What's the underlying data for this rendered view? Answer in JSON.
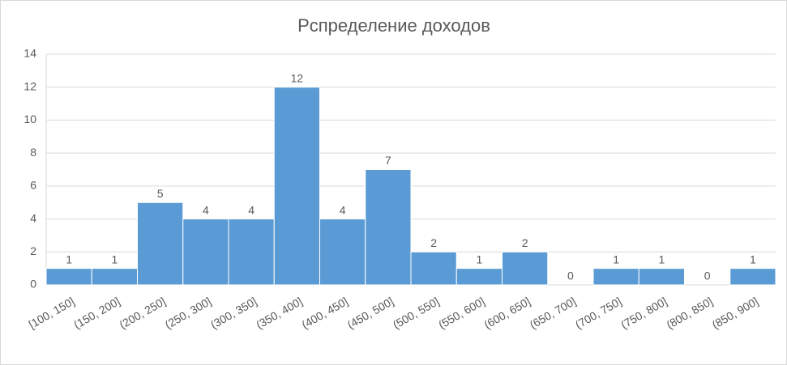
{
  "chart_data": {
    "type": "bar",
    "title": "Рспределение доходов",
    "categories": [
      "[100, 150]",
      "(150, 200]",
      "(200, 250]",
      "(250, 300]",
      "(300, 350]",
      "(350, 400]",
      "(400, 450]",
      "(450, 500]",
      "(500, 550]",
      "(550, 600]",
      "(600, 650]",
      "(650, 700]",
      "(700, 750]",
      "(750, 800]",
      "(800, 850]",
      "(850, 900]"
    ],
    "values": [
      1,
      1,
      5,
      4,
      4,
      12,
      4,
      7,
      2,
      1,
      2,
      0,
      1,
      1,
      0,
      1
    ],
    "color": "#5b9bd5",
    "ylim": [
      0,
      14
    ],
    "yticks": [
      0,
      2,
      4,
      6,
      8,
      10,
      12,
      14
    ],
    "grid": true
  }
}
